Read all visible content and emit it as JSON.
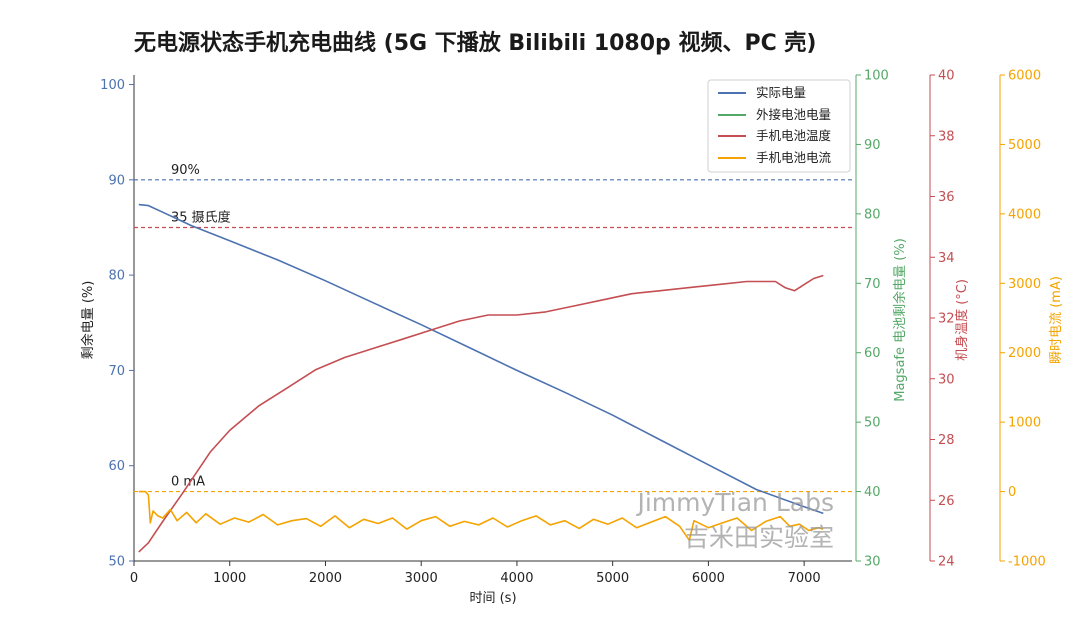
{
  "chart_data": {
    "type": "line",
    "title": "无电源状态手机充电曲线 (5G 下播放 Bilibili 1080p 视频、PC 壳)",
    "xlabel": "时间 (s)",
    "xlim": [
      0,
      7500
    ],
    "xticks": [
      0,
      1000,
      2000,
      3000,
      4000,
      5000,
      6000,
      7000
    ],
    "axes": [
      {
        "id": "battery",
        "label": "剩余电量 (%)",
        "ylim": [
          50,
          101
        ],
        "ticks": [
          50,
          60,
          70,
          80,
          90,
          100
        ],
        "color": "#4c72b0"
      },
      {
        "id": "magsafe",
        "label": "Magsafe 电池剩余电量 (%)",
        "ylim": [
          30,
          100
        ],
        "ticks": [
          30,
          40,
          50,
          60,
          70,
          80,
          90,
          100
        ],
        "color": "#55a868"
      },
      {
        "id": "temp",
        "label": "机身温度 (°C)",
        "ylim": [
          24,
          40
        ],
        "ticks": [
          24,
          26,
          28,
          30,
          32,
          34,
          36,
          38,
          40
        ],
        "color": "#c44e52"
      },
      {
        "id": "current",
        "label": "瞬时电流 (mA)",
        "ylim": [
          -1000,
          6000
        ],
        "ticks": [
          -1000,
          0,
          1000,
          2000,
          3000,
          4000,
          5000,
          6000
        ],
        "color": "#f5a300"
      }
    ],
    "series": [
      {
        "name": "实际电量",
        "axis": "battery",
        "color": "#4c72b0",
        "x": [
          50,
          150,
          300,
          600,
          1000,
          1500,
          2000,
          2500,
          3000,
          3500,
          4000,
          4500,
          5000,
          5500,
          6000,
          6500,
          7000,
          7200
        ],
        "y": [
          87.4,
          87.3,
          86.6,
          85.2,
          83.6,
          81.6,
          79.4,
          77.1,
          74.8,
          72.4,
          70.0,
          67.7,
          65.3,
          62.7,
          60.1,
          57.5,
          55.7,
          55.0
        ]
      },
      {
        "name": "外接电池电量",
        "axis": "magsafe",
        "color": "#55a868",
        "x": [],
        "y": []
      },
      {
        "name": "手机电池温度",
        "axis": "temp",
        "color": "#c44e52",
        "x": [
          50,
          150,
          300,
          500,
          800,
          1000,
          1300,
          1600,
          1900,
          2200,
          2500,
          2800,
          3100,
          3400,
          3700,
          4000,
          4300,
          4600,
          4900,
          5200,
          5500,
          5800,
          6100,
          6400,
          6700,
          6800,
          6900,
          7000,
          7100,
          7200
        ],
        "y": [
          24.3,
          24.6,
          25.3,
          26.2,
          27.6,
          28.3,
          29.1,
          29.7,
          30.3,
          30.7,
          31.0,
          31.3,
          31.6,
          31.9,
          32.1,
          32.1,
          32.2,
          32.4,
          32.6,
          32.8,
          32.9,
          33.0,
          33.1,
          33.2,
          33.2,
          33.0,
          32.9,
          33.1,
          33.3,
          33.4
        ]
      },
      {
        "name": "手机电池电流",
        "axis": "current",
        "color": "#f5a300",
        "x": [
          50,
          120,
          150,
          170,
          200,
          250,
          300,
          380,
          450,
          550,
          650,
          750,
          900,
          1050,
          1200,
          1350,
          1500,
          1650,
          1800,
          1950,
          2100,
          2250,
          2400,
          2550,
          2700,
          2850,
          3000,
          3150,
          3300,
          3450,
          3600,
          3750,
          3900,
          4050,
          4200,
          4350,
          4500,
          4650,
          4800,
          4950,
          5100,
          5250,
          5400,
          5550,
          5700,
          5800,
          5850,
          6000,
          6150,
          6300,
          6450,
          6600,
          6750,
          6850,
          6950,
          7050,
          7150,
          7200
        ],
        "y": [
          0,
          0,
          -50,
          -450,
          -280,
          -350,
          -380,
          -260,
          -420,
          -300,
          -450,
          -320,
          -470,
          -380,
          -440,
          -330,
          -480,
          -420,
          -390,
          -500,
          -350,
          -520,
          -400,
          -460,
          -380,
          -540,
          -420,
          -360,
          -500,
          -430,
          -480,
          -380,
          -510,
          -420,
          -350,
          -480,
          -420,
          -530,
          -400,
          -470,
          -380,
          -520,
          -440,
          -360,
          -500,
          -700,
          -420,
          -520,
          -450,
          -380,
          -560,
          -430,
          -360,
          -500,
          -470,
          -560,
          -520,
          -540
        ]
      }
    ],
    "hlines": [
      {
        "axis": "battery",
        "value": 90,
        "color": "#4c72b0",
        "label": "90%"
      },
      {
        "axis": "battery",
        "value": 85,
        "color": "#c44e52",
        "label": "35 摄氏度"
      },
      {
        "axis": "current",
        "value": 0,
        "color": "#f5a300",
        "label": "0 mA"
      }
    ],
    "legend": {
      "position": "top-right",
      "entries": [
        "实际电量",
        "外接电池电量",
        "手机电池温度",
        "手机电池电流"
      ]
    },
    "watermark": {
      "line1": "JimmyTian Labs",
      "line2": "吉米田实验室"
    }
  }
}
